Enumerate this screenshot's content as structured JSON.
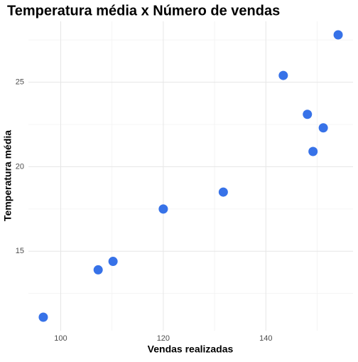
{
  "chart_data": {
    "type": "scatter",
    "title": "Temperatura média x Número de vendas",
    "x_label": "Vendas realizadas",
    "y_label": "Temperatura média",
    "series": [
      {
        "color": "#3772e8",
        "x": [
          154.1,
          143.4,
          148.1,
          151.2,
          149.2,
          131.7,
          120,
          110.2,
          107.3,
          96.6
        ],
        "values": [
          27.8,
          25.4,
          23.1,
          22.3,
          20.9,
          18.5,
          17.5,
          14.4,
          13.9,
          11.1
        ]
      }
    ],
    "xlim": [
      93.7,
      157
    ],
    "ylim": [
      10.3,
      28.6
    ],
    "xticks": [
      100,
      120,
      140
    ],
    "yticks": [
      15,
      20,
      25
    ],
    "xticks_minor": [
      110,
      130,
      150
    ],
    "yticks_minor": [
      12.5,
      17.5,
      22.5,
      27.5
    ],
    "grid": true
  }
}
